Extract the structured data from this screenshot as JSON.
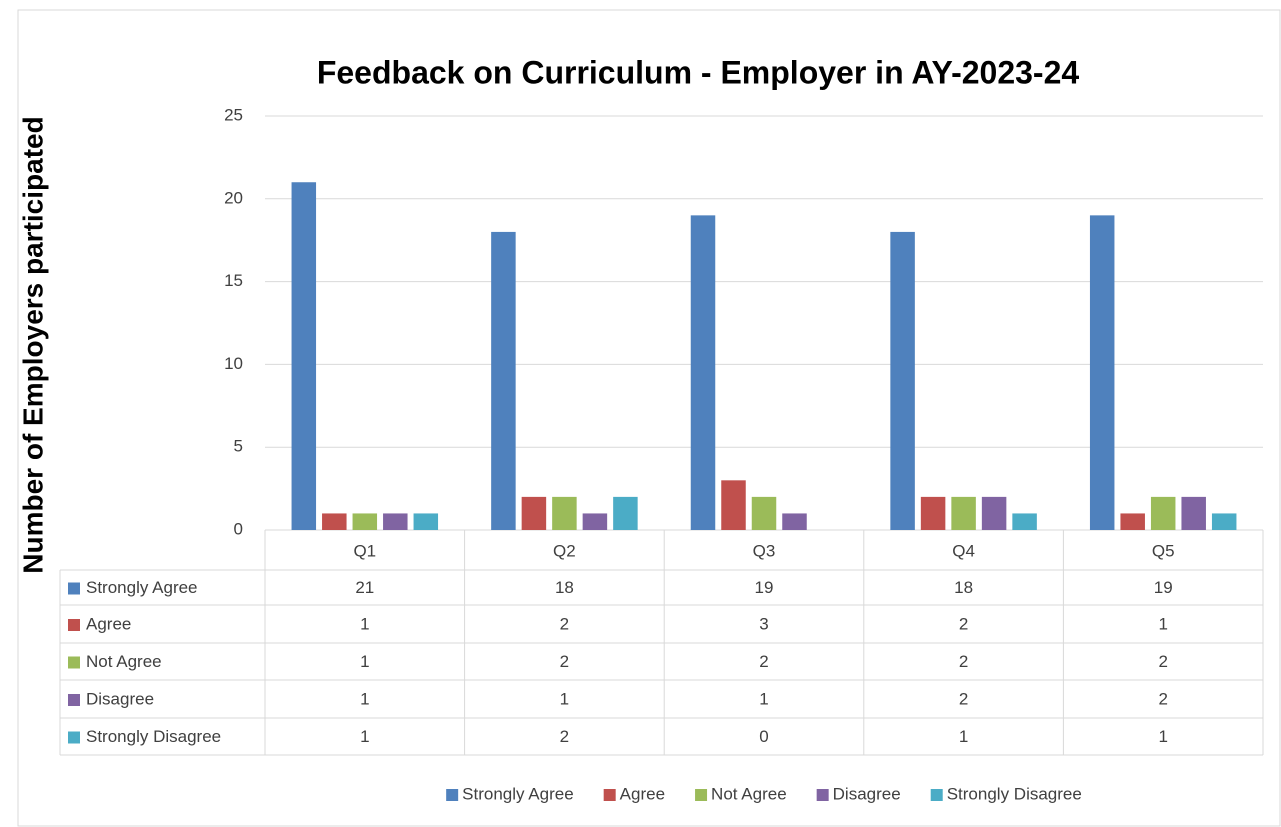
{
  "chart_data": {
    "type": "bar",
    "title": "Feedback on Curriculum - Employer in AY-2023-24",
    "ylabel": "Number of Employers participated",
    "categories": [
      "Q1",
      "Q2",
      "Q3",
      "Q4",
      "Q5"
    ],
    "series": [
      {
        "name": "Strongly Agree",
        "color": "#4f81bd",
        "values": [
          21,
          18,
          19,
          18,
          19
        ]
      },
      {
        "name": "Agree",
        "color": "#c0504d",
        "values": [
          1,
          2,
          3,
          2,
          1
        ]
      },
      {
        "name": "Not Agree",
        "color": "#9bbb59",
        "values": [
          1,
          2,
          2,
          2,
          2
        ]
      },
      {
        "name": "Disagree",
        "color": "#8064a2",
        "values": [
          1,
          1,
          1,
          2,
          2
        ]
      },
      {
        "name": "Strongly Disagree",
        "color": "#4bacc6",
        "values": [
          1,
          2,
          0,
          1,
          1
        ]
      }
    ],
    "ylim": [
      0,
      25
    ],
    "yticks": [
      0,
      5,
      10,
      15,
      20,
      25
    ],
    "grid": true,
    "legend": "bottom",
    "data_table": true
  }
}
